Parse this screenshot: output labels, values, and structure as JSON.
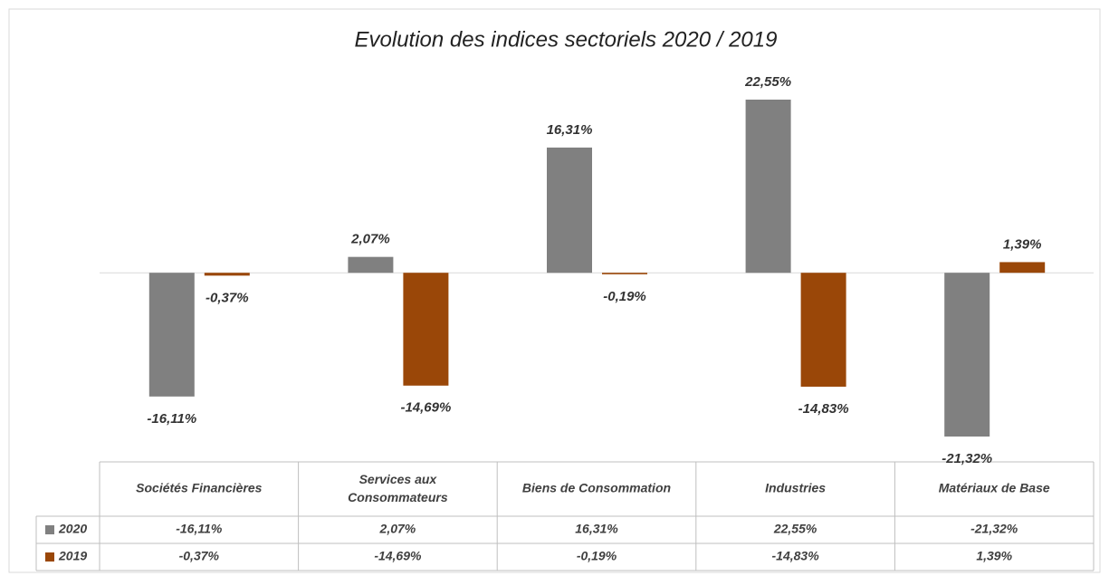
{
  "chart_data": {
    "type": "bar",
    "title": "Evolution des indices sectoriels 2020 / 2019",
    "categories": [
      "Sociétés Financières",
      "Services aux Consommateurs",
      "Biens de Consommation",
      "Industries",
      "Matériaux de Base"
    ],
    "series": [
      {
        "name": "2020",
        "color": "#808080",
        "values": [
          -16.11,
          2.07,
          16.31,
          22.55,
          -21.32
        ],
        "value_labels": [
          "-16,11%",
          "2,07%",
          "16,31%",
          "22,55%",
          "-21,32%"
        ]
      },
      {
        "name": "2019",
        "color": "#9a4708",
        "values": [
          -0.37,
          -14.69,
          -0.19,
          -14.83,
          1.39
        ],
        "value_labels": [
          "-0,37%",
          "-14,69%",
          "-0,19%",
          "-14,83%",
          "1,39%"
        ]
      }
    ]
  }
}
